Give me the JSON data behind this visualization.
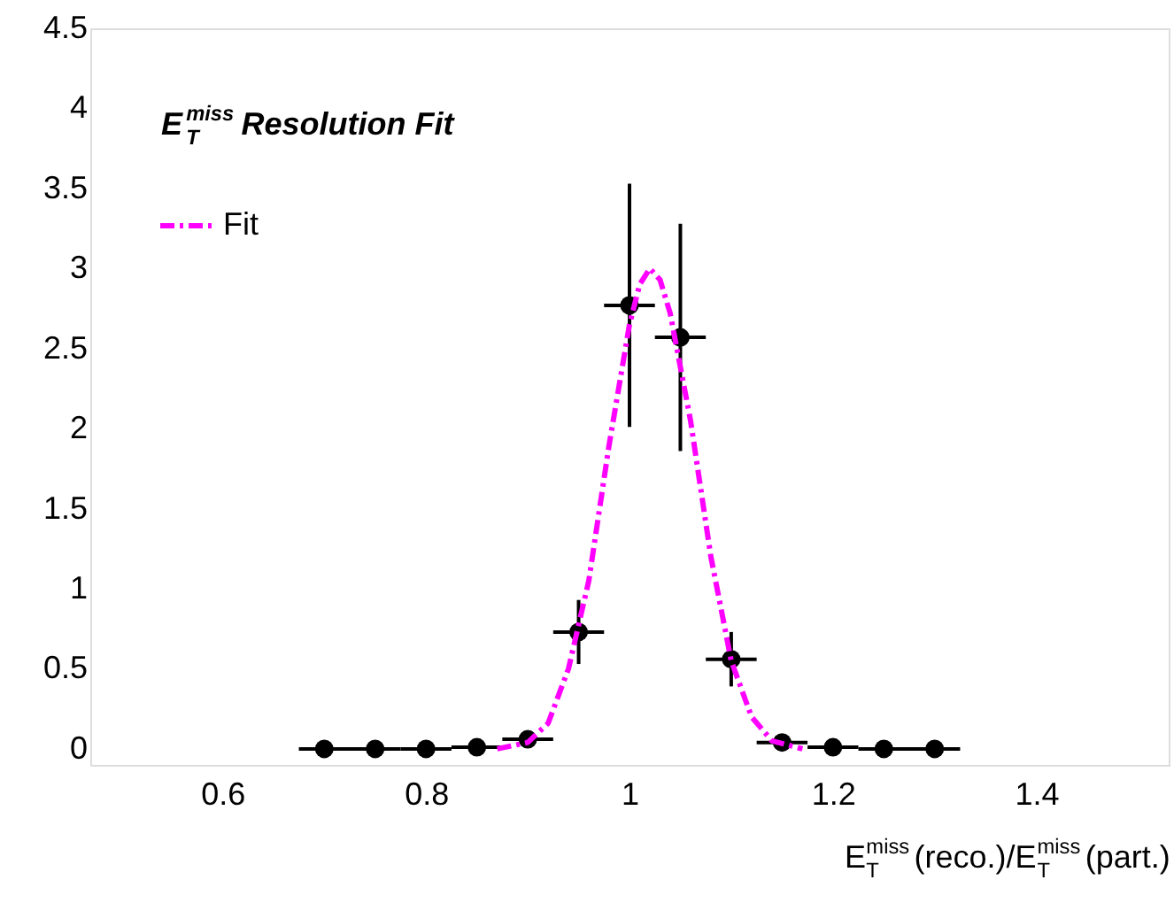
{
  "chart_data": {
    "type": "scatter",
    "legend_title": "E$^{miss}$$_{T}$ Resolution Fit",
    "xlabel": "E$^{miss}$$_{T}$(reco.)/E$^{miss}$$_{T}$(part.)",
    "xlim": [
      0.47,
      1.53
    ],
    "xticks": [
      0.6,
      0.8,
      1,
      1.2,
      1.4
    ],
    "ylim": [
      -0.1,
      4.5
    ],
    "yticks": [
      0,
      0.5,
      1,
      1.5,
      2,
      2.5,
      3,
      3.5,
      4,
      4.5
    ],
    "grid": false,
    "legend": "top left",
    "marker": "circle",
    "series": [
      {
        "color": "#000000",
        "x": [
          0.7,
          0.75,
          0.8,
          0.85,
          0.9,
          0.95,
          1.0,
          1.05,
          1.1,
          1.15,
          1.2,
          1.25,
          1.3
        ],
        "values": [
          0,
          0,
          0,
          0.01,
          0.06,
          0.73,
          2.77,
          2.57,
          0.56,
          0.04,
          0.01,
          0,
          0
        ],
        "xerrors": [
          0.025,
          0.025,
          0.025,
          0.025,
          0.025,
          0.025,
          0.025,
          0.025,
          0.025,
          0.025,
          0.025,
          0.025,
          0.025
        ],
        "errors": [
          null,
          null,
          null,
          null,
          0.02,
          0.2,
          0.76,
          0.71,
          0.17,
          0.02,
          null,
          null,
          null
        ]
      },
      {
        "type": "line",
        "name": "Fit",
        "color": "#ff00ff",
        "line_style": "dashdot",
        "marker": "none",
        "x": [
          0.87,
          0.9,
          0.92,
          0.94,
          0.96,
          0.98,
          1.0,
          1.01,
          1.02,
          1.03,
          1.04,
          1.06,
          1.08,
          1.1,
          1.12,
          1.14,
          1.17
        ],
        "values": [
          0,
          0.04,
          0.16,
          0.5,
          1.05,
          1.9,
          2.65,
          2.9,
          3.0,
          2.93,
          2.72,
          2.05,
          1.2,
          0.55,
          0.2,
          0.05,
          0
        ]
      }
    ]
  }
}
